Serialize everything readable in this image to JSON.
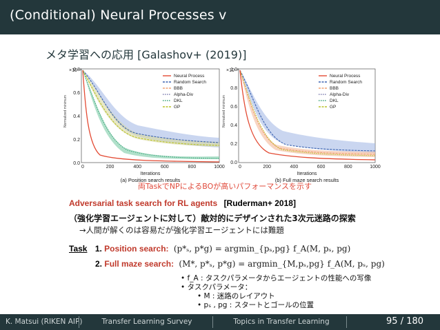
{
  "header": {
    "title": "(Conditional) Neural Processes v"
  },
  "slide": {
    "subtitle": "メタ学習への応用 [Galashov+ (2019)]",
    "figure": {
      "left_panel": {
        "caption": "(a) Position search results",
        "ylabel": "Normalized minimum",
        "xlabel": "Iterations",
        "scale": "×10⁻²",
        "yticks": [
          "0.8",
          "0.6",
          "0.4",
          "0.2",
          "0.0"
        ],
        "xticks": [
          "0",
          "200",
          "400",
          "600",
          "800",
          "1000"
        ]
      },
      "right_panel": {
        "caption": "(b) Full maze search results",
        "ylabel": "Normalized minimum",
        "xlabel": "Iterations",
        "scale": "×10⁻²",
        "yticks": [
          "1.0",
          "0.8",
          "0.6",
          "0.4",
          "0.2",
          "0.0"
        ],
        "xticks": [
          "0",
          "200",
          "400",
          "600",
          "800",
          "1000"
        ]
      },
      "legend": [
        "Neural Process",
        "Random Search",
        "BBB",
        "Alpha-Div",
        "DKL",
        "GP"
      ],
      "colors": {
        "np": "#e34a33",
        "random": "#3b62b0",
        "bbb": "#f0a070",
        "alpha": "#7f7fb0",
        "dkl": "#3aa37a",
        "gp": "#b9c229"
      }
    },
    "red_note": "両TaskでNPによるBOが高いパフォーマンスを示す",
    "paper_title": "Adversarial task search for RL agents",
    "paper_ref": "[Ruderman+ 2018]",
    "japanese_title": "（強化学習エージェントに対して）敵対的にデザインされた3次元迷路の探索",
    "arrow_note": "→人間が解くのは容易だが強化学習エージェントには難題",
    "task_label": "Task",
    "task1_num": "1.",
    "task1_name": "Position search:",
    "task1_math": "(p*ₛ, p*g) = argmin_{pₛ,pg} f_A(M, pₛ, pg)",
    "task2_num": "2.",
    "task2_name": "Full maze search:",
    "task2_math": "(M*, p*ₛ, p*g) = argmin_{M,pₛ,pg} f_A(M, pₛ, pg)",
    "bullets": [
      "• f_A : タスクパラメータからエージェントの性能への写像",
      "• タスクパラメータ：",
      "• M : 迷路のレイアウト",
      "• pₛ , pg : スタートとゴールの位置"
    ]
  },
  "footer": {
    "author": "K. Matsui (RIKEN AIP)",
    "talk": "Transfer Learning Survey",
    "section": "Topics in Transfer Learning",
    "page": "95",
    "total": "180",
    "page_sep": "/"
  }
}
